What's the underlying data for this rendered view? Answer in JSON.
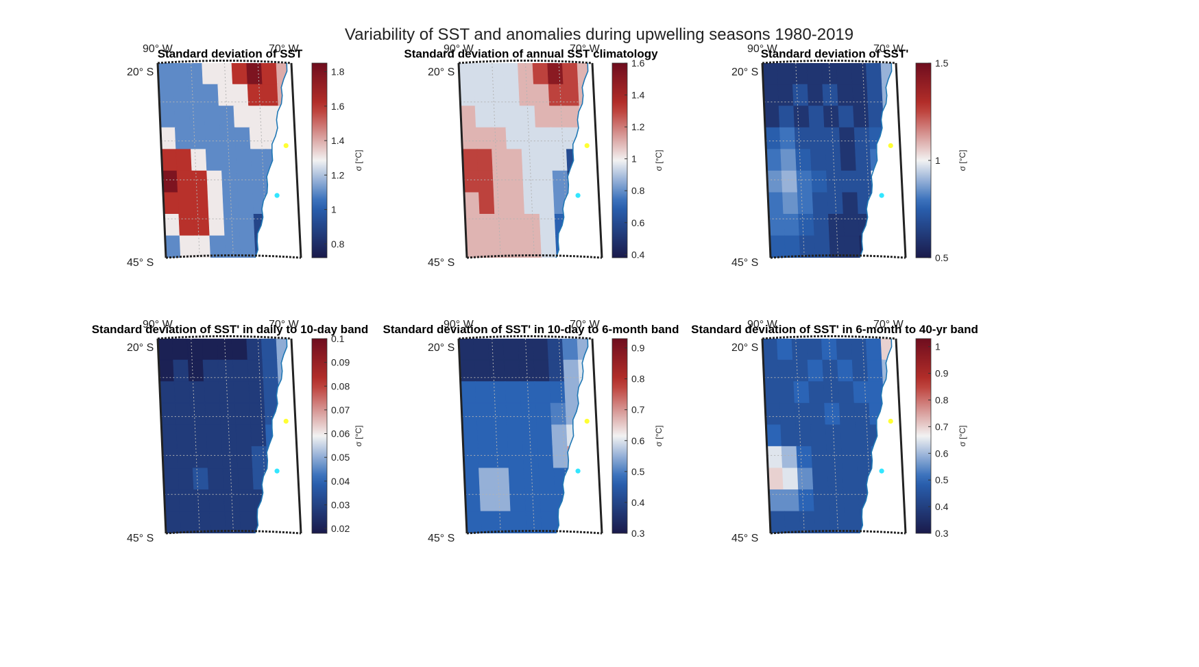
{
  "figure": {
    "title": "Variability of SST and anomalies during upwelling seasons 1980-2019"
  },
  "colors": {
    "low": "#1a1a4a",
    "blue": "#2b66b8",
    "mid": "#f2f2f2",
    "red": "#b8302a",
    "high": "#6e0d1e",
    "land": "#ffffff",
    "coastline": "#1f77b4",
    "marker_north": "#ffff33",
    "marker_south": "#33e6ff",
    "grid": "#b3b3b3"
  },
  "chart_data": [
    {
      "type": "heatmap",
      "title": "Standard deviation of SST",
      "lon_labels": [
        "90° W",
        "70° W"
      ],
      "lat_labels": [
        "20° S",
        "45° S"
      ],
      "colorbar": {
        "label": "σ [°C]",
        "range": [
          0.72,
          1.85
        ],
        "ticks": [
          0.8,
          1,
          1.2,
          1.4,
          1.6,
          1.8
        ]
      },
      "grid_vals": [
        [
          1.1,
          1.1,
          1.1,
          1.3,
          1.3,
          1.6,
          1.8,
          1.6,
          1.4
        ],
        [
          1.1,
          1.1,
          1.1,
          1.1,
          1.3,
          1.3,
          1.6,
          1.6,
          1.4
        ],
        [
          1.1,
          1.1,
          1.1,
          1.1,
          1.1,
          1.3,
          1.3,
          1.3,
          1.3
        ],
        [
          1.3,
          1.1,
          1.1,
          1.1,
          1.1,
          1.1,
          1.3,
          1.3,
          1.3
        ],
        [
          1.6,
          1.6,
          1.3,
          1.1,
          1.1,
          1.1,
          1.1,
          1.1,
          1.1
        ],
        [
          1.8,
          1.6,
          1.6,
          1.3,
          1.1,
          1.1,
          1.1,
          1.1,
          1.1
        ],
        [
          1.6,
          1.6,
          1.6,
          1.3,
          1.1,
          1.1,
          1.1,
          1.1,
          1.1
        ],
        [
          1.3,
          1.6,
          1.6,
          1.3,
          1.1,
          1.1,
          0.9,
          0.8,
          0.8
        ],
        [
          1.1,
          1.3,
          1.3,
          1.1,
          1.1,
          1.1,
          0.9,
          0.8,
          0.8
        ]
      ],
      "markers": [
        {
          "lon": -71.4,
          "lat": -30.6
        },
        {
          "lon": -73.1,
          "lat": -37.0
        }
      ]
    },
    {
      "type": "heatmap",
      "title": "Standard deviation of annual SST climatology",
      "lon_labels": [
        "90° W",
        "70° W"
      ],
      "lat_labels": [
        "20° S",
        "45° S"
      ],
      "colorbar": {
        "label": "σ [°C]",
        "range": [
          0.38,
          1.6
        ],
        "ticks": [
          0.4,
          0.6,
          0.8,
          1,
          1.2,
          1.4,
          1.6
        ]
      },
      "grid_vals": [
        [
          0.95,
          0.95,
          0.95,
          0.95,
          1.1,
          1.3,
          1.5,
          1.3,
          1.1
        ],
        [
          0.95,
          0.95,
          0.95,
          0.95,
          1.1,
          1.1,
          1.3,
          1.3,
          1.1
        ],
        [
          1.1,
          0.95,
          0.95,
          0.95,
          0.95,
          1.1,
          1.1,
          1.1,
          0.95
        ],
        [
          1.1,
          1.1,
          1.1,
          0.95,
          0.95,
          0.95,
          0.95,
          0.95,
          0.8
        ],
        [
          1.3,
          1.3,
          1.1,
          1.1,
          0.95,
          0.95,
          0.95,
          0.6,
          0.5
        ],
        [
          1.3,
          1.3,
          1.1,
          1.1,
          0.95,
          0.95,
          0.8,
          0.5,
          0.4
        ],
        [
          1.1,
          1.3,
          1.1,
          1.1,
          0.95,
          0.95,
          0.8,
          0.5,
          0.4
        ],
        [
          1.1,
          1.1,
          1.1,
          1.1,
          1.1,
          0.95,
          0.7,
          0.5,
          0.4
        ],
        [
          1.1,
          1.1,
          1.1,
          1.1,
          1.1,
          0.95,
          0.7,
          0.5,
          0.4
        ]
      ],
      "markers": [
        {
          "lon": -71.4,
          "lat": -30.6
        },
        {
          "lon": -73.1,
          "lat": -37.0
        }
      ]
    },
    {
      "type": "heatmap",
      "title": "Standard deviation of SST'",
      "lon_labels": [
        "90° W",
        "70° W"
      ],
      "lat_labels": [
        "20° S",
        "45° S"
      ],
      "colorbar": {
        "label": "σ [°C]",
        "range": [
          0.5,
          1.5
        ],
        "ticks": [
          0.5,
          1,
          1.5
        ]
      },
      "grid_vals": [
        [
          0.6,
          0.6,
          0.6,
          0.6,
          0.6,
          0.6,
          0.6,
          0.7,
          0.9
        ],
        [
          0.6,
          0.6,
          0.7,
          0.6,
          0.7,
          0.6,
          0.6,
          0.7,
          0.9
        ],
        [
          0.6,
          0.7,
          0.6,
          0.7,
          0.6,
          0.7,
          0.6,
          0.7,
          0.9
        ],
        [
          0.75,
          0.8,
          0.7,
          0.7,
          0.7,
          0.6,
          0.7,
          0.75,
          0.9
        ],
        [
          0.8,
          0.85,
          0.75,
          0.7,
          0.7,
          0.6,
          0.7,
          0.8,
          1.0
        ],
        [
          0.85,
          0.9,
          0.8,
          0.75,
          0.7,
          0.7,
          0.7,
          1.0,
          1.1
        ],
        [
          0.8,
          0.85,
          0.8,
          0.7,
          0.7,
          0.6,
          0.7,
          0.8,
          1.2
        ],
        [
          0.8,
          0.8,
          0.75,
          0.7,
          0.6,
          0.6,
          0.6,
          0.7,
          0.8
        ],
        [
          0.75,
          0.75,
          0.7,
          0.7,
          0.6,
          0.6,
          0.55,
          0.6,
          0.6
        ]
      ],
      "markers": [
        {
          "lon": -71.4,
          "lat": -30.6
        },
        {
          "lon": -73.1,
          "lat": -37.0
        }
      ]
    },
    {
      "type": "heatmap",
      "title": "Standard deviation of SST' in daily to 10-day band",
      "lon_labels": [
        "90° W",
        "70° W"
      ],
      "lat_labels": [
        "20° S",
        "45° S"
      ],
      "colorbar": {
        "label": "σ [°C]",
        "range": [
          0.018,
          0.1
        ],
        "ticks": [
          0.02,
          0.03,
          0.04,
          0.05,
          0.06,
          0.07,
          0.08,
          0.09,
          0.1
        ]
      },
      "grid_vals": [
        [
          0.02,
          0.02,
          0.02,
          0.02,
          0.02,
          0.02,
          0.028,
          0.035,
          0.05
        ],
        [
          0.02,
          0.028,
          0.02,
          0.028,
          0.028,
          0.028,
          0.028,
          0.035,
          0.05
        ],
        [
          0.028,
          0.028,
          0.028,
          0.028,
          0.028,
          0.028,
          0.028,
          0.035,
          0.05
        ],
        [
          0.028,
          0.028,
          0.028,
          0.028,
          0.028,
          0.028,
          0.028,
          0.035,
          0.045
        ],
        [
          0.028,
          0.028,
          0.028,
          0.028,
          0.028,
          0.028,
          0.028,
          0.04,
          0.045
        ],
        [
          0.028,
          0.028,
          0.028,
          0.028,
          0.028,
          0.028,
          0.035,
          0.04,
          0.04
        ],
        [
          0.028,
          0.028,
          0.035,
          0.028,
          0.028,
          0.028,
          0.035,
          0.04,
          0.04
        ],
        [
          0.028,
          0.028,
          0.028,
          0.028,
          0.028,
          0.028,
          0.028,
          0.035,
          0.035
        ],
        [
          0.028,
          0.028,
          0.028,
          0.028,
          0.028,
          0.028,
          0.028,
          0.028,
          0.028
        ]
      ],
      "markers": [
        {
          "lon": -71.4,
          "lat": -30.6
        },
        {
          "lon": -73.1,
          "lat": -37.0
        }
      ]
    },
    {
      "type": "heatmap",
      "title": "Standard deviation of SST' in 10-day to 6-month band",
      "lon_labels": [
        "90° W",
        "70° W"
      ],
      "lat_labels": [
        "20° S",
        "45° S"
      ],
      "colorbar": {
        "label": "σ [°C]",
        "range": [
          0.3,
          0.93
        ],
        "ticks": [
          0.3,
          0.4,
          0.5,
          0.6,
          0.7,
          0.8,
          0.9
        ]
      },
      "grid_vals": [
        [
          0.35,
          0.35,
          0.35,
          0.35,
          0.35,
          0.35,
          0.4,
          0.5,
          0.55
        ],
        [
          0.35,
          0.35,
          0.35,
          0.35,
          0.35,
          0.35,
          0.4,
          0.55,
          0.6
        ],
        [
          0.47,
          0.47,
          0.47,
          0.47,
          0.47,
          0.47,
          0.47,
          0.55,
          0.6
        ],
        [
          0.47,
          0.47,
          0.47,
          0.47,
          0.47,
          0.47,
          0.5,
          0.55,
          0.6
        ],
        [
          0.47,
          0.47,
          0.47,
          0.47,
          0.47,
          0.47,
          0.55,
          0.6,
          0.65
        ],
        [
          0.47,
          0.47,
          0.47,
          0.47,
          0.47,
          0.47,
          0.55,
          0.7,
          0.8
        ],
        [
          0.47,
          0.55,
          0.55,
          0.47,
          0.47,
          0.47,
          0.47,
          0.6,
          0.8
        ],
        [
          0.47,
          0.55,
          0.55,
          0.47,
          0.47,
          0.47,
          0.47,
          0.5,
          0.6
        ],
        [
          0.47,
          0.47,
          0.47,
          0.47,
          0.47,
          0.47,
          0.47,
          0.4,
          0.35
        ]
      ],
      "markers": [
        {
          "lon": -71.4,
          "lat": -30.6
        },
        {
          "lon": -73.1,
          "lat": -37.0
        }
      ]
    },
    {
      "type": "heatmap",
      "title": "Standard deviation of SST' in 6-month to 40-yr band",
      "lon_labels": [
        "90° W",
        "70° W"
      ],
      "lat_labels": [
        "20° S",
        "45° S"
      ],
      "colorbar": {
        "label": "σ [°C]",
        "range": [
          0.3,
          1.03
        ],
        "ticks": [
          0.3,
          0.4,
          0.5,
          0.6,
          0.7,
          0.8,
          0.9,
          1
        ]
      },
      "grid_vals": [
        [
          0.45,
          0.5,
          0.45,
          0.45,
          0.5,
          0.45,
          0.45,
          0.5,
          0.7
        ],
        [
          0.45,
          0.45,
          0.45,
          0.5,
          0.45,
          0.5,
          0.45,
          0.5,
          0.6
        ],
        [
          0.45,
          0.45,
          0.5,
          0.45,
          0.45,
          0.45,
          0.5,
          0.5,
          0.6
        ],
        [
          0.45,
          0.45,
          0.45,
          0.45,
          0.5,
          0.45,
          0.45,
          0.5,
          0.55
        ],
        [
          0.5,
          0.45,
          0.45,
          0.45,
          0.45,
          0.45,
          0.45,
          0.45,
          0.5
        ],
        [
          0.65,
          0.6,
          0.5,
          0.45,
          0.45,
          0.45,
          0.45,
          0.5,
          0.55
        ],
        [
          0.7,
          0.65,
          0.55,
          0.45,
          0.45,
          0.45,
          0.45,
          0.45,
          0.5
        ],
        [
          0.55,
          0.55,
          0.5,
          0.45,
          0.45,
          0.45,
          0.45,
          0.45,
          0.45
        ],
        [
          0.45,
          0.45,
          0.45,
          0.45,
          0.45,
          0.45,
          0.45,
          0.4,
          0.4
        ]
      ],
      "markers": [
        {
          "lon": -71.4,
          "lat": -30.6
        },
        {
          "lon": -73.1,
          "lat": -37.0
        }
      ]
    }
  ]
}
